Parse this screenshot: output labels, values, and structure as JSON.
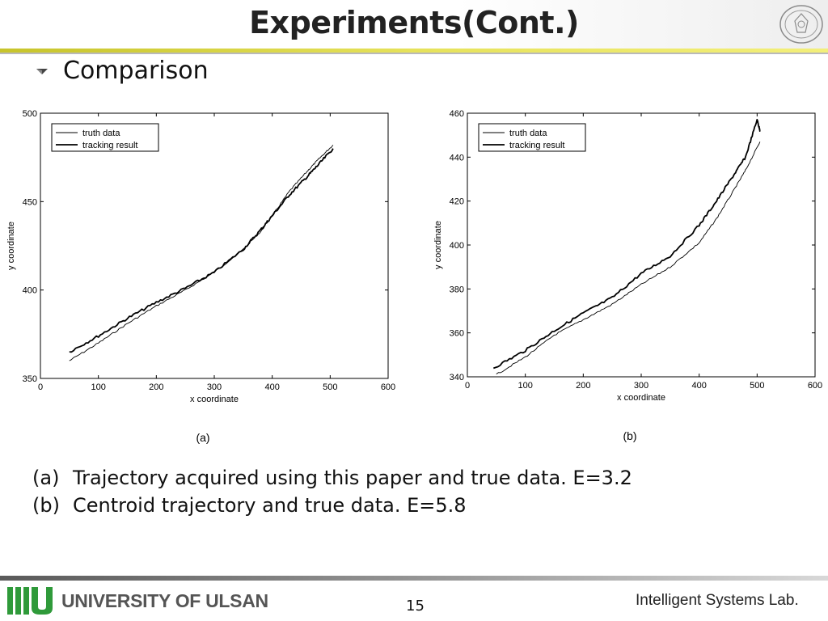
{
  "header": {
    "title": "Experiments(Cont.)"
  },
  "bullet": {
    "text": "Comparison",
    "icon": "arrow-bullet-icon"
  },
  "captions": [
    {
      "label": "(a)",
      "text": "Trajectory acquired using this paper and true data. E=3.2"
    },
    {
      "label": "(b)",
      "text": "Centroid trajectory and true data. E=5.8"
    }
  ],
  "footer": {
    "university": "UNIVERSITY OF ULSAN",
    "page_number": "15",
    "lab": "Intelligent Systems Lab."
  },
  "chart_data": [
    {
      "type": "line",
      "xlabel": "x coordinate",
      "ylabel": "y coordinate",
      "sublabel": "(a)",
      "xlim": [
        0,
        600
      ],
      "ylim": [
        350,
        500
      ],
      "xticks": [
        0,
        100,
        200,
        300,
        400,
        500,
        600
      ],
      "yticks": [
        350,
        400,
        450,
        500
      ],
      "grid": false,
      "legend_position": "top-left",
      "series": [
        {
          "name": "truth data",
          "style": "thin",
          "x": [
            50,
            100,
            150,
            200,
            250,
            300,
            350,
            380,
            400,
            430,
            460,
            480,
            505
          ],
          "y": [
            360,
            370,
            381,
            391,
            400,
            410,
            423,
            433,
            442,
            456,
            467,
            474,
            482
          ]
        },
        {
          "name": "tracking result",
          "style": "thick",
          "x": [
            50,
            100,
            150,
            200,
            250,
            300,
            350,
            380,
            400,
            430,
            460,
            480,
            505
          ],
          "y": [
            365,
            374,
            384,
            393,
            401,
            410,
            423,
            434,
            442,
            454,
            464,
            471,
            480
          ]
        }
      ]
    },
    {
      "type": "line",
      "xlabel": "x coordinate",
      "ylabel": "y coordinate",
      "sublabel": "(b)",
      "xlim": [
        0,
        600
      ],
      "ylim": [
        340,
        460
      ],
      "xticks": [
        0,
        100,
        200,
        300,
        400,
        500,
        600
      ],
      "yticks": [
        340,
        360,
        380,
        400,
        420,
        440,
        460
      ],
      "grid": false,
      "legend_position": "top-left",
      "series": [
        {
          "name": "truth data",
          "style": "thin",
          "x": [
            50,
            100,
            150,
            200,
            250,
            300,
            350,
            400,
            430,
            460,
            480,
            505
          ],
          "y": [
            341,
            349,
            359,
            366,
            373,
            382,
            390,
            401,
            412,
            425,
            434,
            447
          ]
        },
        {
          "name": "tracking result",
          "style": "thick",
          "x": [
            45,
            100,
            150,
            200,
            250,
            300,
            350,
            400,
            430,
            460,
            480,
            500,
            505
          ],
          "y": [
            344,
            352,
            361,
            369,
            376,
            387,
            395,
            409,
            420,
            432,
            440,
            457,
            452
          ]
        }
      ]
    }
  ]
}
